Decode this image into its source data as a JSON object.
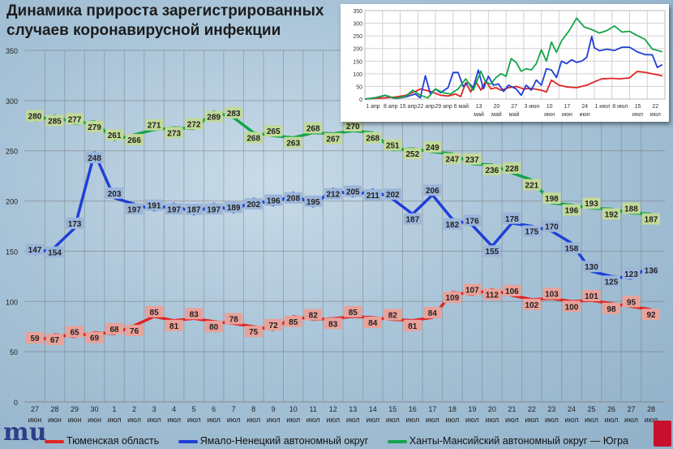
{
  "title": "Динамика прироста зарегистрированных случаев коронавирусной инфекции",
  "logo_text": "mu",
  "colors": {
    "tyumen": "#e02424",
    "yanao": "#1f3fd6",
    "hmao": "#16a34a"
  },
  "chart_data": [
    {
      "type": "line",
      "title": "Динамика прироста зарегистрированных случаев коронавирусной инфекции",
      "ylim": [
        0,
        350
      ],
      "yticks": [
        0,
        50,
        100,
        150,
        200,
        250,
        300,
        350
      ],
      "grid": true,
      "legend": "bottom",
      "categories": [
        [
          "27",
          "июн"
        ],
        [
          "28",
          "июн"
        ],
        [
          "29",
          "июн"
        ],
        [
          "30",
          "июн"
        ],
        [
          "1",
          "июл"
        ],
        [
          "2",
          "июл"
        ],
        [
          "3",
          "июл"
        ],
        [
          "4",
          "июл"
        ],
        [
          "5",
          "июл"
        ],
        [
          "6",
          "июл"
        ],
        [
          "7",
          "июл"
        ],
        [
          "8",
          "июл"
        ],
        [
          "9",
          "июл"
        ],
        [
          "10",
          "июл"
        ],
        [
          "11",
          "июл"
        ],
        [
          "12",
          "июл"
        ],
        [
          "13",
          "июл"
        ],
        [
          "14",
          "июл"
        ],
        [
          "15",
          "июл"
        ],
        [
          "16",
          "июл"
        ],
        [
          "17",
          "июл"
        ],
        [
          "18",
          "июл"
        ],
        [
          "19",
          "июл"
        ],
        [
          "20",
          "июл"
        ],
        [
          "21",
          "июл"
        ],
        [
          "22",
          "июл"
        ],
        [
          "23",
          "июл"
        ],
        [
          "24",
          "июл"
        ],
        [
          "25",
          "июл"
        ],
        [
          "26",
          "июл"
        ],
        [
          "27",
          "июл"
        ],
        [
          "28",
          "июл"
        ]
      ],
      "series": [
        {
          "name": "Тюменская область",
          "color": "#e02424",
          "label_bg": "#e8a29a",
          "values": [
            59,
            67,
            65,
            69,
            68,
            76,
            85,
            81,
            83,
            80,
            78,
            75,
            72,
            85,
            82,
            83,
            85,
            84,
            82,
            81,
            84,
            109,
            107,
            112,
            106,
            102,
            103,
            100,
            101,
            98,
            95,
            92
          ]
        },
        {
          "name": "Ямало-Ненецкий автономный округ",
          "color": "#1f3fd6",
          "label_bg": "#9cb6da",
          "values": [
            147,
            154,
            173,
            248,
            203,
            197,
            191,
            197,
            187,
            197,
            189,
            202,
            196,
            208,
            195,
            212,
            205,
            211,
            202,
            187,
            206,
            182,
            176,
            155,
            178,
            175,
            170,
            158,
            130,
            125,
            123,
            136
          ]
        },
        {
          "name": "Ханты-Мансийский автономный округ — Югра",
          "color": "#16a34a",
          "label_bg": "#c2d99a",
          "values": [
            280,
            285,
            277,
            279,
            261,
            266,
            271,
            273,
            272,
            289,
            283,
            268,
            265,
            263,
            268,
            267,
            270,
            268,
            251,
            252,
            249,
            247,
            237,
            236,
            228,
            221,
            198,
            196,
            193,
            192,
            188,
            187
          ]
        }
      ]
    },
    {
      "type": "line",
      "title": "",
      "ylim": [
        0,
        350
      ],
      "yticks": [
        0,
        50,
        100,
        150,
        200,
        250,
        300,
        350
      ],
      "x_unit": "days since 1 апр",
      "xlim": [
        0,
        119
      ],
      "xticks": [
        {
          "day": 0,
          "label": [
            "1 апр"
          ]
        },
        {
          "day": 7,
          "label": [
            "8 апр"
          ]
        },
        {
          "day": 14,
          "label": [
            "15 апр"
          ]
        },
        {
          "day": 21,
          "label": [
            "22 апр"
          ]
        },
        {
          "day": 28,
          "label": [
            "29 апр"
          ]
        },
        {
          "day": 35,
          "label": [
            "6 май"
          ]
        },
        {
          "day": 42,
          "label": [
            "13",
            "май"
          ]
        },
        {
          "day": 49,
          "label": [
            "20",
            "май"
          ]
        },
        {
          "day": 56,
          "label": [
            "27",
            "май"
          ]
        },
        {
          "day": 63,
          "label": [
            "3 июн"
          ]
        },
        {
          "day": 70,
          "label": [
            "10",
            "июн"
          ]
        },
        {
          "day": 77,
          "label": [
            "17",
            "июн"
          ]
        },
        {
          "day": 84,
          "label": [
            "24",
            "июн"
          ]
        },
        {
          "day": 91,
          "label": [
            "1 июл"
          ]
        },
        {
          "day": 98,
          "label": [
            "8 июл"
          ]
        },
        {
          "day": 105,
          "label": [
            "15",
            "июл"
          ]
        },
        {
          "day": 112,
          "label": [
            "22",
            "июл"
          ]
        }
      ],
      "series": [
        {
          "name": "Тюменская область",
          "color": "#e02424",
          "x": [
            0,
            4,
            8,
            12,
            16,
            20,
            22,
            26,
            30,
            33,
            36,
            38,
            40,
            42,
            44,
            46,
            48,
            50,
            52,
            54,
            57,
            60,
            63,
            66,
            70,
            72,
            74,
            77,
            80,
            84,
            88,
            91,
            94,
            98,
            101,
            105,
            108,
            111,
            114,
            118
          ],
          "y": [
            0,
            3,
            5,
            8,
            14,
            30,
            40,
            30,
            15,
            12,
            20,
            10,
            65,
            28,
            70,
            35,
            72,
            40,
            45,
            35,
            45,
            50,
            40,
            42,
            35,
            28,
            75,
            55,
            48,
            45,
            55,
            68,
            80,
            82,
            80,
            84,
            109,
            106,
            100,
            92
          ]
        },
        {
          "name": "Ямало-Ненецкий автономный округ",
          "color": "#1f3fd6",
          "x": [
            0,
            4,
            8,
            12,
            16,
            20,
            22,
            24,
            26,
            28,
            30,
            33,
            35,
            37,
            39,
            41,
            43,
            45,
            47,
            49,
            51,
            53,
            55,
            57,
            60,
            62,
            64,
            66,
            68,
            70,
            72,
            74,
            76,
            78,
            80,
            82,
            84,
            86,
            88,
            90,
            91,
            93,
            96,
            99,
            102,
            105,
            108,
            111,
            114,
            116,
            118
          ],
          "y": [
            0,
            5,
            15,
            2,
            8,
            20,
            5,
            92,
            20,
            40,
            25,
            45,
            105,
            105,
            50,
            65,
            45,
            115,
            40,
            90,
            55,
            60,
            30,
            55,
            40,
            15,
            55,
            35,
            75,
            55,
            120,
            115,
            85,
            150,
            140,
            155,
            145,
            150,
            165,
            248,
            203,
            191,
            197,
            192,
            205,
            205,
            187,
            176,
            175,
            125,
            136
          ]
        },
        {
          "name": "Ханты-Мансийский автономный округ — Югра",
          "color": "#16a34a",
          "x": [
            0,
            4,
            8,
            12,
            16,
            19,
            22,
            25,
            28,
            31,
            34,
            37,
            40,
            43,
            46,
            48,
            50,
            52,
            54,
            56,
            58,
            60,
            62,
            64,
            66,
            68,
            70,
            72,
            74,
            76,
            78,
            81,
            84,
            87,
            90,
            93,
            96,
            99,
            102,
            105,
            108,
            111,
            114,
            118
          ],
          "y": [
            0,
            5,
            15,
            3,
            10,
            35,
            15,
            5,
            40,
            25,
            20,
            40,
            80,
            35,
            110,
            65,
            60,
            85,
            100,
            90,
            160,
            145,
            110,
            120,
            115,
            140,
            195,
            150,
            225,
            185,
            230,
            270,
            320,
            285,
            275,
            261,
            271,
            289,
            265,
            268,
            251,
            237,
            198,
            187
          ]
        }
      ]
    }
  ]
}
